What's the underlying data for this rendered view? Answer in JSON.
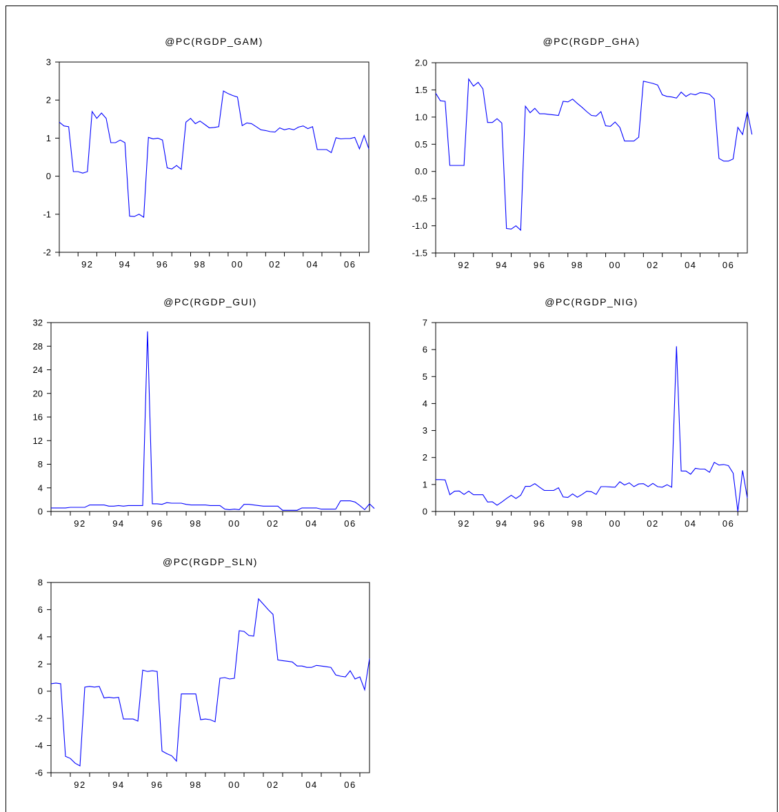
{
  "chart_data": [
    {
      "type": "line",
      "title": "@PC(RGDP_GAM)",
      "xlabel": "",
      "ylabel": "",
      "x_ticks": [
        "92",
        "94",
        "96",
        "98",
        "00",
        "02",
        "04",
        "06"
      ],
      "y_ticks": [
        "-2",
        "-1",
        "0",
        "1",
        "2",
        "3"
      ],
      "ylim": [
        -2,
        3
      ],
      "series": [
        {
          "color": "#0000ff",
          "values": [
            1.42,
            1.32,
            1.3,
            0.12,
            0.12,
            0.08,
            0.12,
            1.7,
            1.52,
            1.66,
            1.52,
            0.88,
            0.88,
            0.95,
            0.88,
            -1.05,
            -1.06,
            -1.0,
            -1.08,
            1.02,
            0.98,
            1.0,
            0.95,
            0.22,
            0.19,
            0.28,
            0.18,
            1.42,
            1.52,
            1.38,
            1.45,
            1.36,
            1.27,
            1.28,
            1.3,
            2.24,
            2.17,
            2.12,
            2.08,
            1.33,
            1.4,
            1.38,
            1.3,
            1.22,
            1.2,
            1.17,
            1.16,
            1.27,
            1.22,
            1.25,
            1.22,
            1.29,
            1.32,
            1.25,
            1.3,
            0.7,
            0.7,
            0.7,
            0.62,
            1.01,
            0.98,
            0.99,
            0.99,
            1.02,
            0.72,
            1.07,
            0.72
          ]
        }
      ]
    },
    {
      "type": "line",
      "title": "@PC(RGDP_GHA)",
      "xlabel": "",
      "ylabel": "",
      "x_ticks": [
        "92",
        "94",
        "96",
        "98",
        "00",
        "02",
        "04",
        "06"
      ],
      "y_ticks": [
        "-1.5",
        "-1.0",
        "-0.5",
        "0.0",
        "0.5",
        "1.0",
        "1.5",
        "2.0"
      ],
      "ylim": [
        -1.5,
        2.0
      ],
      "series": [
        {
          "color": "#0000ff",
          "values": [
            1.44,
            1.3,
            1.29,
            0.11,
            0.11,
            0.11,
            0.11,
            1.7,
            1.57,
            1.64,
            1.52,
            0.9,
            0.9,
            0.97,
            0.89,
            -1.05,
            -1.06,
            -1.0,
            -1.08,
            1.2,
            1.08,
            1.16,
            1.06,
            1.06,
            1.05,
            1.04,
            1.03,
            1.29,
            1.28,
            1.33,
            1.25,
            1.18,
            1.1,
            1.03,
            1.02,
            1.1,
            0.84,
            0.83,
            0.91,
            0.81,
            0.56,
            0.56,
            0.56,
            0.63,
            1.66,
            1.64,
            1.62,
            1.59,
            1.41,
            1.38,
            1.37,
            1.35,
            1.46,
            1.38,
            1.43,
            1.41,
            1.45,
            1.44,
            1.42,
            1.33,
            0.24,
            0.19,
            0.19,
            0.23,
            0.81,
            0.68,
            1.1,
            0.68
          ]
        }
      ]
    },
    {
      "type": "line",
      "title": "@PC(RGDP_GUI)",
      "xlabel": "",
      "ylabel": "",
      "x_ticks": [
        "92",
        "94",
        "96",
        "98",
        "00",
        "02",
        "04",
        "06"
      ],
      "y_ticks": [
        "0",
        "4",
        "8",
        "12",
        "16",
        "20",
        "24",
        "28",
        "32"
      ],
      "ylim": [
        0,
        32
      ],
      "series": [
        {
          "color": "#0000ff",
          "values": [
            0.6,
            0.6,
            0.6,
            0.6,
            0.7,
            0.7,
            0.7,
            0.7,
            1.1,
            1.1,
            1.1,
            1.1,
            0.9,
            0.9,
            1.0,
            0.9,
            1.0,
            1.0,
            1.0,
            1.0,
            30.5,
            1.3,
            1.3,
            1.2,
            1.5,
            1.4,
            1.4,
            1.4,
            1.2,
            1.1,
            1.1,
            1.1,
            1.1,
            1.0,
            1.0,
            1.0,
            0.4,
            0.3,
            0.4,
            0.3,
            1.2,
            1.2,
            1.1,
            1.0,
            0.9,
            0.9,
            0.9,
            0.9,
            0.2,
            0.2,
            0.2,
            0.2,
            0.6,
            0.6,
            0.6,
            0.6,
            0.4,
            0.4,
            0.4,
            0.4,
            1.8,
            1.8,
            1.8,
            1.6,
            1.0,
            0.3,
            1.3,
            0.5
          ]
        }
      ]
    },
    {
      "type": "line",
      "title": "@PC(RGDP_NIG)",
      "xlabel": "",
      "ylabel": "",
      "x_ticks": [
        "92",
        "94",
        "96",
        "98",
        "00",
        "02",
        "04",
        "06"
      ],
      "y_ticks": [
        "0",
        "1",
        "2",
        "3",
        "4",
        "5",
        "6",
        "7"
      ],
      "ylim": [
        0,
        7
      ],
      "series": [
        {
          "color": "#0000ff",
          "values": [
            1.18,
            1.18,
            1.17,
            0.62,
            0.75,
            0.76,
            0.63,
            0.75,
            0.62,
            0.62,
            0.62,
            0.35,
            0.36,
            0.23,
            0.35,
            0.48,
            0.6,
            0.48,
            0.6,
            0.93,
            0.93,
            1.03,
            0.9,
            0.78,
            0.78,
            0.78,
            0.88,
            0.54,
            0.52,
            0.65,
            0.53,
            0.63,
            0.75,
            0.73,
            0.63,
            0.92,
            0.92,
            0.91,
            0.9,
            1.1,
            0.98,
            1.06,
            0.92,
            1.02,
            1.03,
            0.92,
            1.04,
            0.92,
            0.9,
            0.99,
            0.9,
            6.12,
            1.5,
            1.5,
            1.38,
            1.6,
            1.57,
            1.57,
            1.45,
            1.82,
            1.72,
            1.74,
            1.7,
            1.42,
            0.0,
            1.52,
            0.5
          ]
        }
      ]
    },
    {
      "type": "line",
      "title": "@PC(RGDP_SLN)",
      "xlabel": "",
      "ylabel": "",
      "x_ticks": [
        "92",
        "94",
        "96",
        "98",
        "00",
        "02",
        "04",
        "06"
      ],
      "y_ticks": [
        "-6",
        "-4",
        "-2",
        "0",
        "2",
        "4",
        "6",
        "8"
      ],
      "ylim": [
        -6,
        8
      ],
      "series": [
        {
          "color": "#0000ff",
          "values": [
            0.55,
            0.6,
            0.55,
            -4.8,
            -4.95,
            -5.3,
            -5.5,
            0.3,
            0.35,
            0.3,
            0.35,
            -0.5,
            -0.45,
            -0.5,
            -0.45,
            -2.05,
            -2.05,
            -2.05,
            -2.2,
            1.55,
            1.45,
            1.5,
            1.45,
            -4.4,
            -4.6,
            -4.75,
            -5.15,
            -0.2,
            -0.2,
            -0.2,
            -0.2,
            -2.1,
            -2.05,
            -2.1,
            -2.25,
            0.95,
            1.0,
            0.9,
            0.95,
            4.45,
            4.4,
            4.1,
            4.05,
            6.8,
            6.4,
            6.0,
            5.65,
            2.3,
            2.25,
            2.2,
            2.15,
            1.85,
            1.85,
            1.75,
            1.75,
            1.9,
            1.85,
            1.8,
            1.75,
            1.2,
            1.1,
            1.05,
            1.5,
            0.9,
            1.05,
            0.1,
            2.4
          ]
        }
      ]
    }
  ]
}
